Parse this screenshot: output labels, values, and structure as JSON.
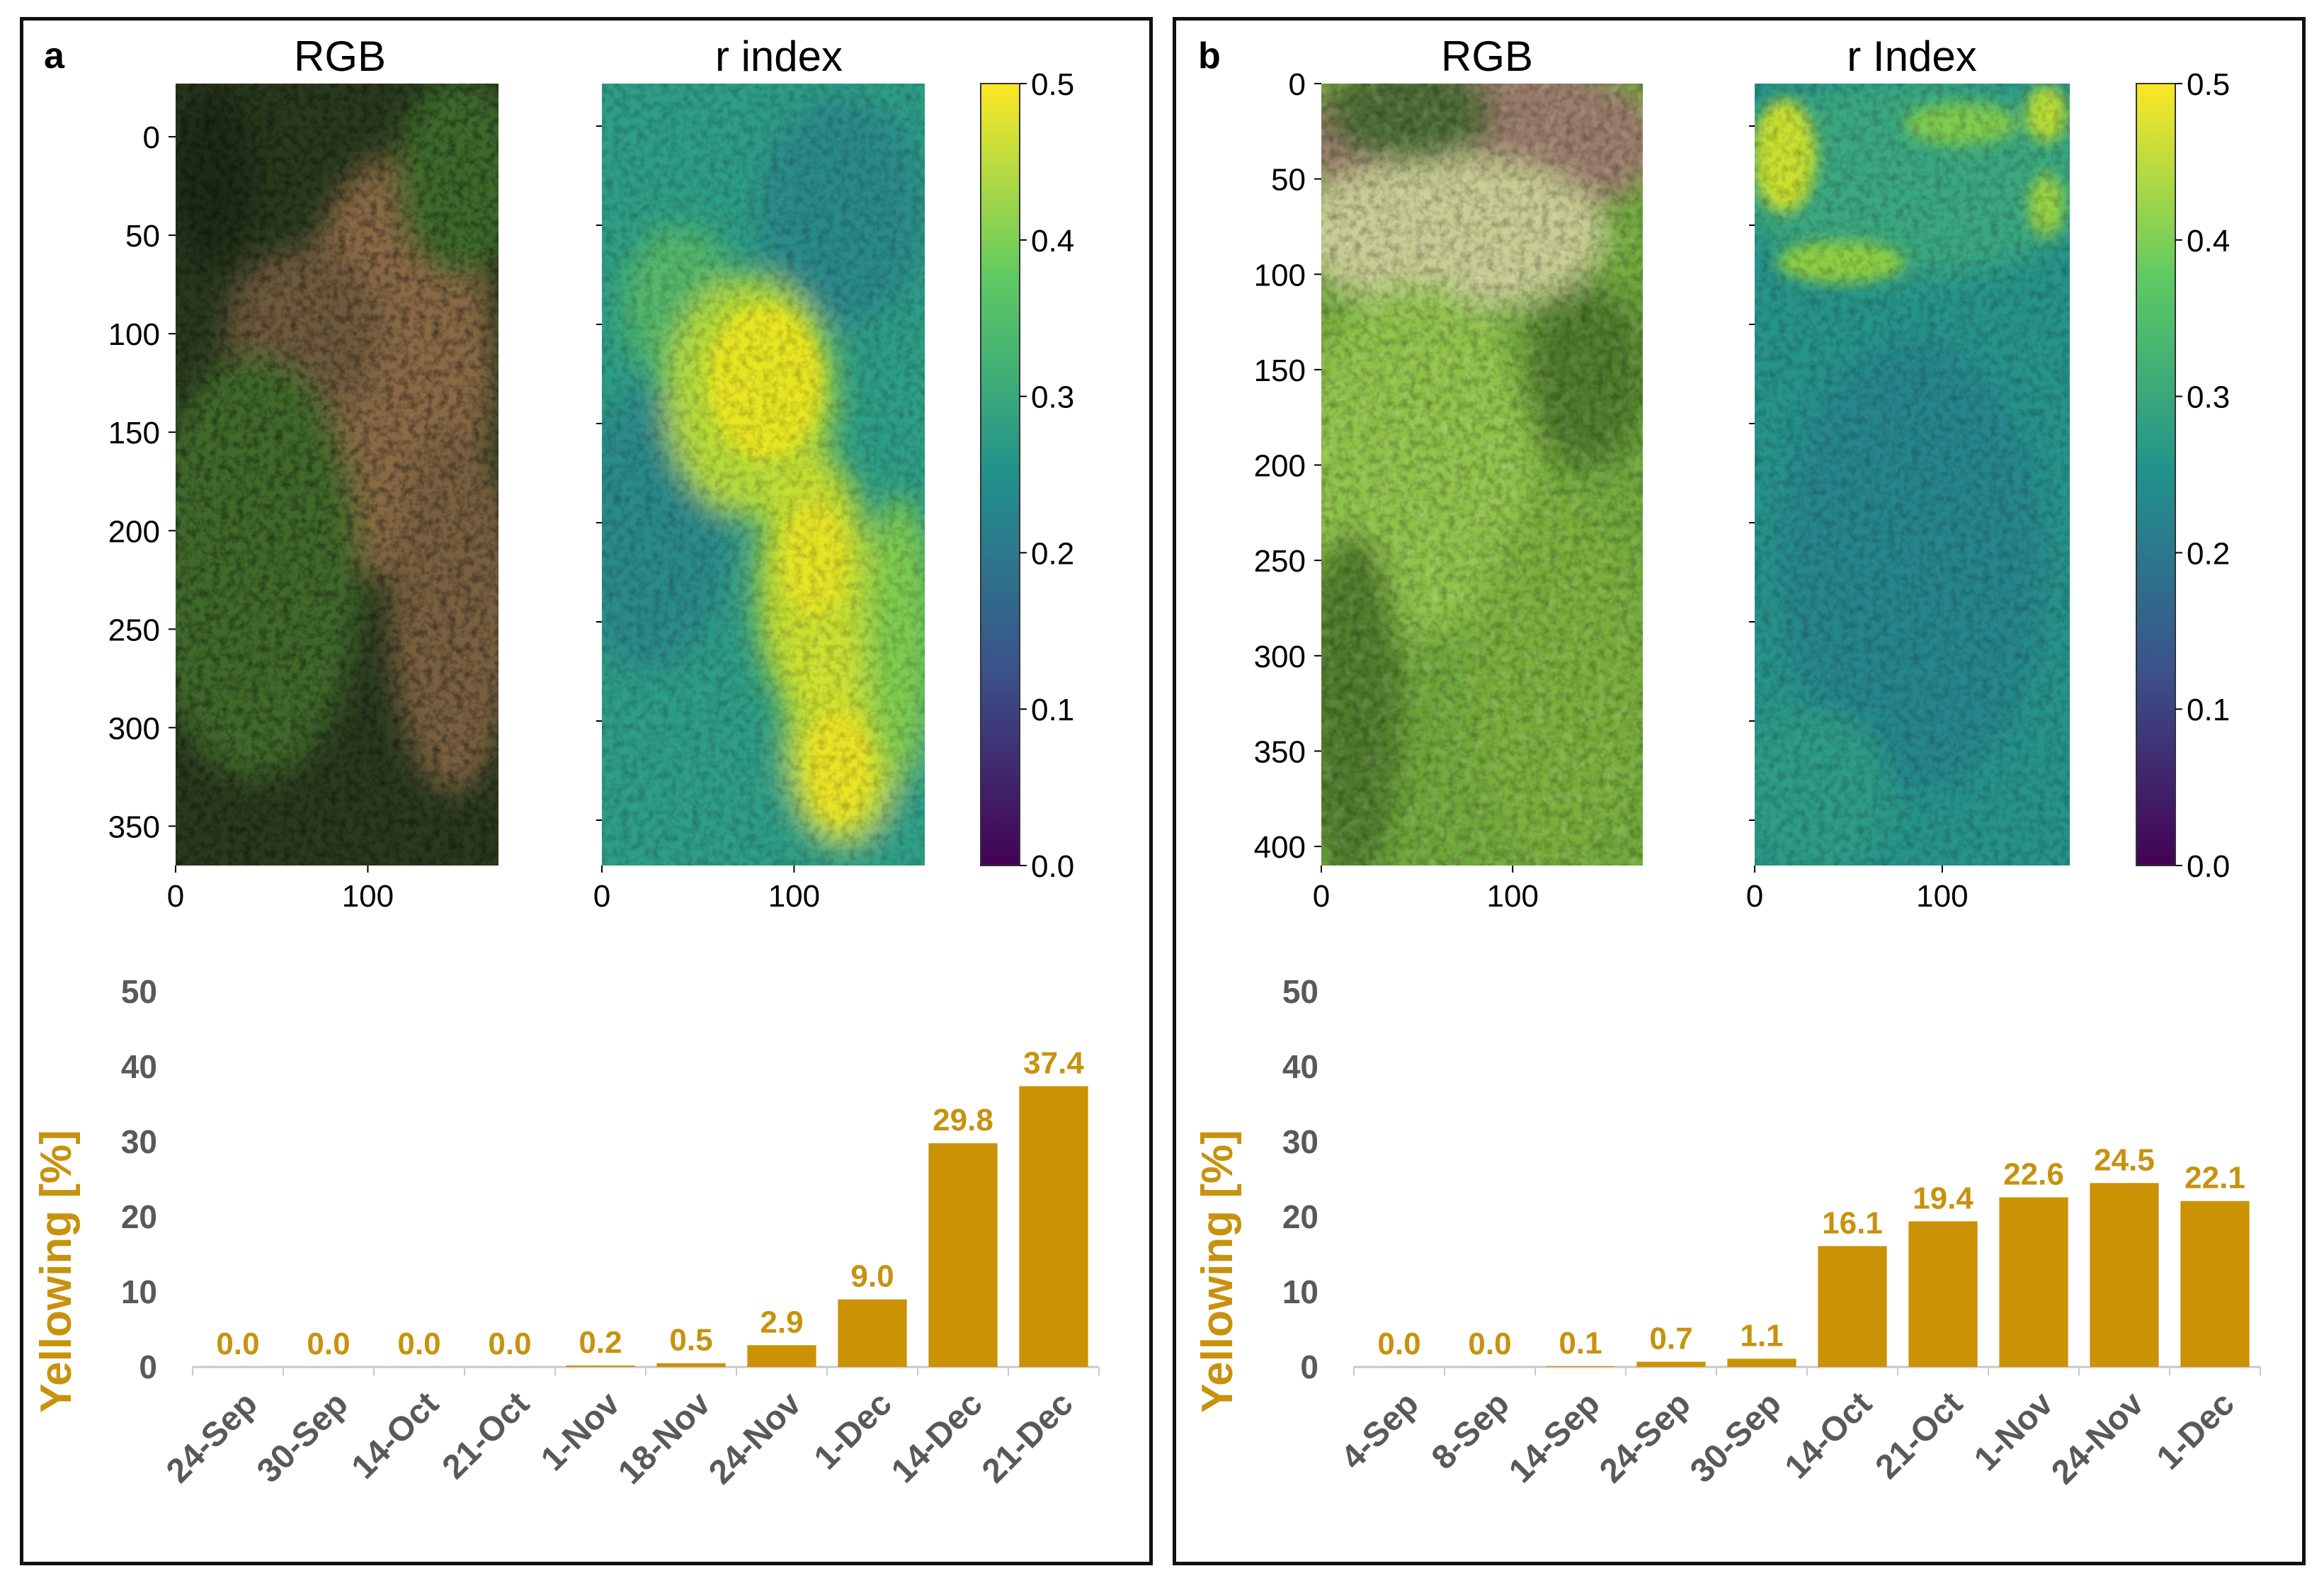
{
  "colors": {
    "bar": "#cc9206",
    "tick_gray": "#595959",
    "bar_label": "#c8920e",
    "ylabel": "#c8920e",
    "cbar_stops": [
      "#440154",
      "#3b528b",
      "#21918c",
      "#5ec962",
      "#fde725"
    ]
  },
  "panels": [
    {
      "letter": "a",
      "rgb_title": "RGB",
      "index_title": "r index",
      "rgb_yticks": [
        "0",
        "50",
        "100",
        "150",
        "200",
        "250",
        "300",
        "350"
      ],
      "rgb_xticks": [
        "0",
        "100"
      ],
      "index_xticks": [
        "0",
        "100"
      ],
      "colorbar_ticks": [
        "0.5",
        "0.4",
        "0.3",
        "0.2",
        "0.1",
        "0.0"
      ]
    },
    {
      "letter": "b",
      "rgb_title": "RGB",
      "index_title": "r Index",
      "rgb_yticks": [
        "0",
        "50",
        "100",
        "150",
        "200",
        "250",
        "300",
        "350",
        "400"
      ],
      "rgb_xticks": [
        "0",
        "100"
      ],
      "index_xticks": [
        "0",
        "100"
      ],
      "colorbar_ticks": [
        "0.5",
        "0.4",
        "0.3",
        "0.2",
        "0.1",
        "0.0"
      ]
    }
  ],
  "chart_data": [
    {
      "type": "bar",
      "title": "",
      "xlabel": "",
      "ylabel": "Yellowing [%]",
      "ylim": [
        0,
        50
      ],
      "yticks": [
        "0",
        "10",
        "20",
        "30",
        "40",
        "50"
      ],
      "categories": [
        "24-Sep",
        "30-Sep",
        "14-Oct",
        "21-Oct",
        "1-Nov",
        "18-Nov",
        "24-Nov",
        "1-Dec",
        "14-Dec",
        "21-Dec"
      ],
      "values": [
        0.0,
        0.0,
        0.0,
        0.0,
        0.2,
        0.5,
        2.9,
        9.0,
        29.8,
        37.4
      ],
      "labels": [
        "0.0",
        "0.0",
        "0.0",
        "0.0",
        "0.2",
        "0.5",
        "2.9",
        "9.0",
        "29.8",
        "37.4"
      ]
    },
    {
      "type": "bar",
      "title": "",
      "xlabel": "",
      "ylabel": "Yellowing [%]",
      "ylim": [
        0,
        50
      ],
      "yticks": [
        "0",
        "10",
        "20",
        "30",
        "40",
        "50"
      ],
      "categories": [
        "4-Sep",
        "8-Sep",
        "14-Sep",
        "24-Sep",
        "30-Sep",
        "14-Oct",
        "21-Oct",
        "1-Nov",
        "24-Nov",
        "1-Dec"
      ],
      "values": [
        0.0,
        0.0,
        0.1,
        0.7,
        1.1,
        16.1,
        19.4,
        22.6,
        24.5,
        22.1
      ],
      "labels": [
        "0.0",
        "0.0",
        "0.1",
        "0.7",
        "1.1",
        "16.1",
        "19.4",
        "22.6",
        "24.5",
        "22.1"
      ]
    }
  ]
}
